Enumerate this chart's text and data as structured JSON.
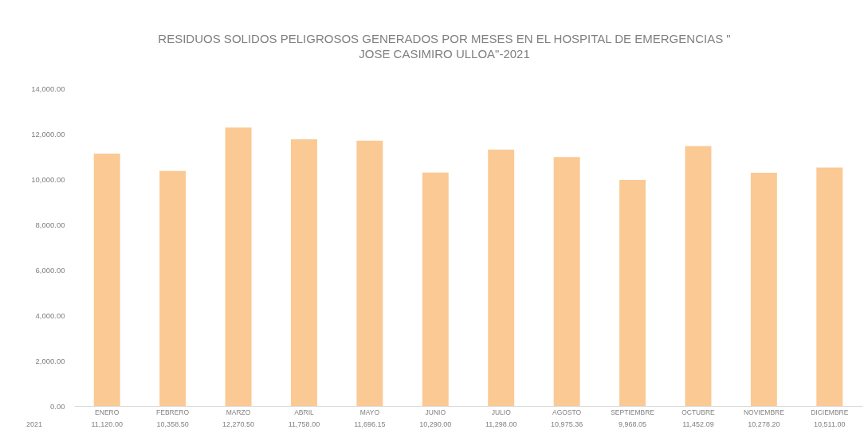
{
  "chart_data": {
    "type": "bar",
    "title": "RESIDUOS SOLIDOS PELIGROSOS GENERADOS POR MESES EN EL HOSPITAL DE EMERGENCIAS \" JOSE CASIMIRO ULLOA\"-2021",
    "categories": [
      "ENERO",
      "FEBRERO",
      "MARZO",
      "ABRIL",
      "MAYO",
      "JUNIO",
      "JULIO",
      "AGOSTO",
      "SEPTIEMBRE",
      "OCTUBRE",
      "NOVIEMBRE",
      "DICIEMBRE"
    ],
    "series": [
      {
        "name": "2021",
        "color": "#fbc994",
        "values": [
          11120.0,
          10358.5,
          12270.5,
          11758.0,
          11696.15,
          10290.0,
          11298.0,
          10975.36,
          9968.05,
          11452.09,
          10278.2,
          10511.0
        ],
        "value_labels": [
          "11,120.00",
          "10,358.50",
          "12,270.50",
          "11,758.00",
          "11,696.15",
          "10,290.00",
          "11,298.00",
          "10,975.36",
          "9,968.05",
          "11,452.09",
          "10,278.20",
          "10,511.00"
        ]
      }
    ],
    "ylim": [
      0,
      14000
    ],
    "yticks": [
      {
        "value": 0,
        "label": "0.00"
      },
      {
        "value": 2000,
        "label": "2,000.00"
      },
      {
        "value": 4000,
        "label": "4,000.00"
      },
      {
        "value": 6000,
        "label": "6,000.00"
      },
      {
        "value": 8000,
        "label": "8,000.00"
      },
      {
        "value": 10000,
        "label": "10,000.00"
      },
      {
        "value": 12000,
        "label": "12,000.00"
      },
      {
        "value": 14000,
        "label": "14,000.00"
      }
    ]
  }
}
